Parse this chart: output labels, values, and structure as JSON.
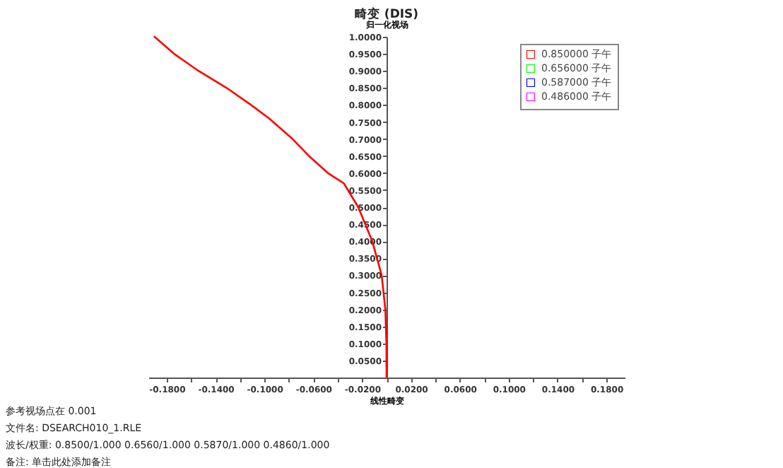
{
  "chart_data": {
    "type": "line",
    "title": "畸变 (DIS)",
    "xlabel": "线性畸变",
    "ylabel": "归一化视场",
    "x": [
      0,
      -0.0001,
      -0.001,
      -0.004,
      -0.0117,
      -0.0232,
      -0.035,
      -0.048,
      -0.0635,
      -0.077,
      -0.096,
      -0.111,
      -0.131,
      -0.154,
      -0.174,
      -0.19
    ],
    "series": [
      {
        "name": "0.850000 子午",
        "color": "#ff0000",
        "values": [
          0,
          0.1,
          0.2,
          0.3,
          0.4,
          0.5,
          0.57,
          0.6,
          0.65,
          0.7,
          0.76,
          0.8,
          0.85,
          0.9,
          0.95,
          1.0
        ]
      },
      {
        "name": "0.656000 子午",
        "color": "#00ff00",
        "values": [
          null,
          null,
          null,
          null,
          null,
          null,
          null,
          null,
          null,
          null,
          null,
          null,
          null,
          null,
          null,
          null
        ]
      },
      {
        "name": "0.587000 子午",
        "color": "#0000ff",
        "values": [
          null,
          null,
          null,
          null,
          null,
          null,
          null,
          null,
          null,
          null,
          null,
          null,
          null,
          null,
          null,
          null
        ]
      },
      {
        "name": "0.486000 子午",
        "color": "#ff00ff",
        "values": [
          null,
          null,
          null,
          null,
          null,
          null,
          null,
          null,
          null,
          null,
          null,
          null,
          null,
          null,
          null,
          null
        ]
      }
    ],
    "xlim": [
      -0.195,
      0.195
    ],
    "xticks": [
      {
        "value": -0.18,
        "label": "-0.1800"
      },
      {
        "value": -0.16,
        "label": null
      },
      {
        "value": -0.14,
        "label": "-0.1400"
      },
      {
        "value": -0.12,
        "label": null
      },
      {
        "value": -0.1,
        "label": "-0.1000"
      },
      {
        "value": -0.08,
        "label": null
      },
      {
        "value": -0.06,
        "label": "-0.0600"
      },
      {
        "value": -0.04,
        "label": null
      },
      {
        "value": -0.02,
        "label": "-0.0200"
      },
      {
        "value": 0,
        "label": null
      },
      {
        "value": 0.02,
        "label": "0.0200"
      },
      {
        "value": 0.04,
        "label": null
      },
      {
        "value": 0.06,
        "label": "0.0600"
      },
      {
        "value": 0.08,
        "label": null
      },
      {
        "value": 0.1,
        "label": "0.1000"
      },
      {
        "value": 0.12,
        "label": null
      },
      {
        "value": 0.14,
        "label": "0.1400"
      },
      {
        "value": 0.16,
        "label": null
      },
      {
        "value": 0.18,
        "label": "0.1800"
      }
    ],
    "ylim": [
      0,
      1
    ],
    "yticks": [
      {
        "value": 0.05,
        "label": "0.0500"
      },
      {
        "value": 0.1,
        "label": "0.1000"
      },
      {
        "value": 0.15,
        "label": "0.1500"
      },
      {
        "value": 0.2,
        "label": "0.2000"
      },
      {
        "value": 0.25,
        "label": "0.2500"
      },
      {
        "value": 0.3,
        "label": "0.3000"
      },
      {
        "value": 0.35,
        "label": "0.3500"
      },
      {
        "value": 0.4,
        "label": "0.4000"
      },
      {
        "value": 0.45,
        "label": "0.4500"
      },
      {
        "value": 0.5,
        "label": "0.5000"
      },
      {
        "value": 0.55,
        "label": "0.5500"
      },
      {
        "value": 0.6,
        "label": "0.6000"
      },
      {
        "value": 0.65,
        "label": "0.6500"
      },
      {
        "value": 0.7,
        "label": "0.7000"
      },
      {
        "value": 0.75,
        "label": "0.7500"
      },
      {
        "value": 0.8,
        "label": "0.8000"
      },
      {
        "value": 0.85,
        "label": "0.8500"
      },
      {
        "value": 0.9,
        "label": "0.9000"
      },
      {
        "value": 0.95,
        "label": "0.9500"
      },
      {
        "value": 1.0,
        "label": "1.0000"
      }
    ],
    "legend": "top right",
    "annotations": [
      "参考视场点在 0.001",
      "文件名: DSEARCH010_1.RLE",
      "波长/权重: 0.8500/1.000 0.6560/1.000 0.5870/1.000 0.4860/1.000",
      "备注: 单击此处添加备注"
    ]
  }
}
